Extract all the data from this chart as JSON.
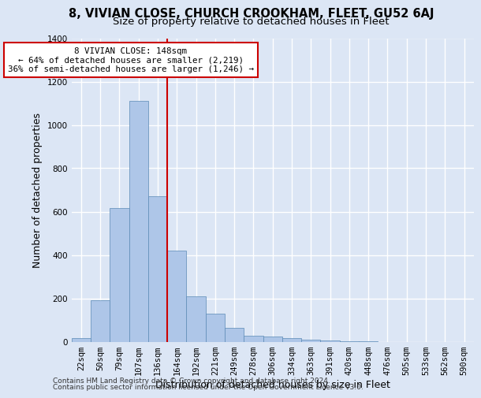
{
  "title": "8, VIVIAN CLOSE, CHURCH CROOKHAM, FLEET, GU52 6AJ",
  "subtitle": "Size of property relative to detached houses in Fleet",
  "xlabel": "Distribution of detached houses by size in Fleet",
  "ylabel": "Number of detached properties",
  "categories": [
    "22sqm",
    "50sqm",
    "79sqm",
    "107sqm",
    "136sqm",
    "164sqm",
    "192sqm",
    "221sqm",
    "249sqm",
    "278sqm",
    "306sqm",
    "334sqm",
    "363sqm",
    "391sqm",
    "420sqm",
    "448sqm",
    "476sqm",
    "505sqm",
    "533sqm",
    "562sqm",
    "590sqm"
  ],
  "values": [
    15,
    190,
    615,
    1110,
    670,
    420,
    210,
    130,
    65,
    28,
    25,
    18,
    10,
    5,
    3,
    1,
    0,
    0,
    0,
    0,
    0
  ],
  "bar_color": "#aec6e8",
  "bar_edge_color": "#5b8ab5",
  "vline_index": 4.5,
  "annotation_line1": "8 VIVIAN CLOSE: 148sqm",
  "annotation_line2": "← 64% of detached houses are smaller (2,219)",
  "annotation_line3": "36% of semi-detached houses are larger (1,246) →",
  "annotation_box_color": "#ffffff",
  "annotation_box_edge": "#cc0000",
  "vline_color": "#cc0000",
  "footer1": "Contains HM Land Registry data © Crown copyright and database right 2024.",
  "footer2": "Contains public sector information licensed under the Open Government Licence v3.0.",
  "ylim": [
    0,
    1400
  ],
  "yticks": [
    0,
    200,
    400,
    600,
    800,
    1000,
    1200,
    1400
  ],
  "background_color": "#dce6f5",
  "grid_color": "#ffffff",
  "title_fontsize": 10.5,
  "subtitle_fontsize": 9.5,
  "axis_label_fontsize": 9,
  "tick_fontsize": 7.5,
  "footer_fontsize": 6.5
}
